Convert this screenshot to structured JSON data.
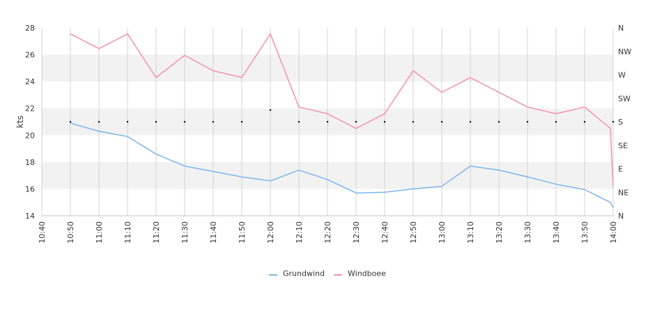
{
  "chart_data": {
    "type": "line",
    "ylabel": "kts",
    "ylim": [
      14,
      28
    ],
    "yticks": [
      "14",
      "16",
      "18",
      "20",
      "22",
      "24",
      "26",
      "28"
    ],
    "xticks": [
      "10:40",
      "10:50",
      "11:00",
      "11:10",
      "11:20",
      "11:30",
      "11:40",
      "11:50",
      "12:00",
      "12:10",
      "12:20",
      "12:30",
      "12:40",
      "12:50",
      "13:00",
      "13:10",
      "13:20",
      "13:30",
      "13:40",
      "13:50",
      "14:00"
    ],
    "right_axis_labels": [
      "N",
      "NE",
      "E",
      "SE",
      "S",
      "SW",
      "W",
      "NW",
      "N"
    ],
    "grid": true,
    "legend_position": "bottom-center",
    "colors": {
      "Grundwind": "#7cb5ec",
      "Windboee": "#f48fb1",
      "band": "#f2f2f2",
      "grid": "#d3d3d3",
      "dots": "#000000"
    },
    "series": [
      {
        "name": "Grundwind",
        "x": [
          "10:50",
          "11:00",
          "11:10",
          "11:20",
          "11:30",
          "11:40",
          "11:50",
          "12:00",
          "12:10",
          "12:20",
          "12:30",
          "12:40",
          "12:50",
          "13:00",
          "13:10",
          "13:20",
          "13:30",
          "13:40",
          "13:50",
          "13:59",
          "14:00"
        ],
        "values": [
          20.9,
          20.3,
          19.9,
          18.6,
          17.7,
          17.3,
          16.9,
          16.6,
          17.4,
          16.7,
          15.7,
          15.75,
          16.0,
          16.2,
          17.7,
          17.4,
          16.9,
          16.35,
          15.95,
          15.0,
          14.6
        ]
      },
      {
        "name": "Windboee",
        "x": [
          "10:50",
          "11:00",
          "11:10",
          "11:20",
          "11:30",
          "11:40",
          "11:50",
          "12:00",
          "12:10",
          "12:20",
          "12:30",
          "12:40",
          "12:50",
          "13:00",
          "13:10",
          "13:20",
          "13:30",
          "13:40",
          "13:50",
          "13:59",
          "14:00"
        ],
        "values": [
          27.55,
          26.45,
          27.55,
          24.3,
          25.95,
          24.8,
          24.3,
          27.55,
          22.1,
          21.6,
          20.5,
          21.6,
          24.8,
          23.2,
          24.3,
          23.2,
          22.1,
          21.6,
          22.1,
          20.5,
          16.2
        ]
      }
    ],
    "direction_dots": {
      "x": [
        "10:50",
        "11:00",
        "11:10",
        "11:20",
        "11:30",
        "11:40",
        "11:50",
        "12:00",
        "12:10",
        "12:20",
        "12:30",
        "12:40",
        "12:50",
        "13:00",
        "13:10",
        "13:20",
        "13:30",
        "13:40",
        "13:50",
        "14:00"
      ],
      "values": [
        180,
        180,
        180,
        180,
        180,
        180,
        180,
        202.5,
        180,
        180,
        180,
        180,
        180,
        180,
        180,
        180,
        180,
        180,
        180,
        180
      ]
    }
  }
}
